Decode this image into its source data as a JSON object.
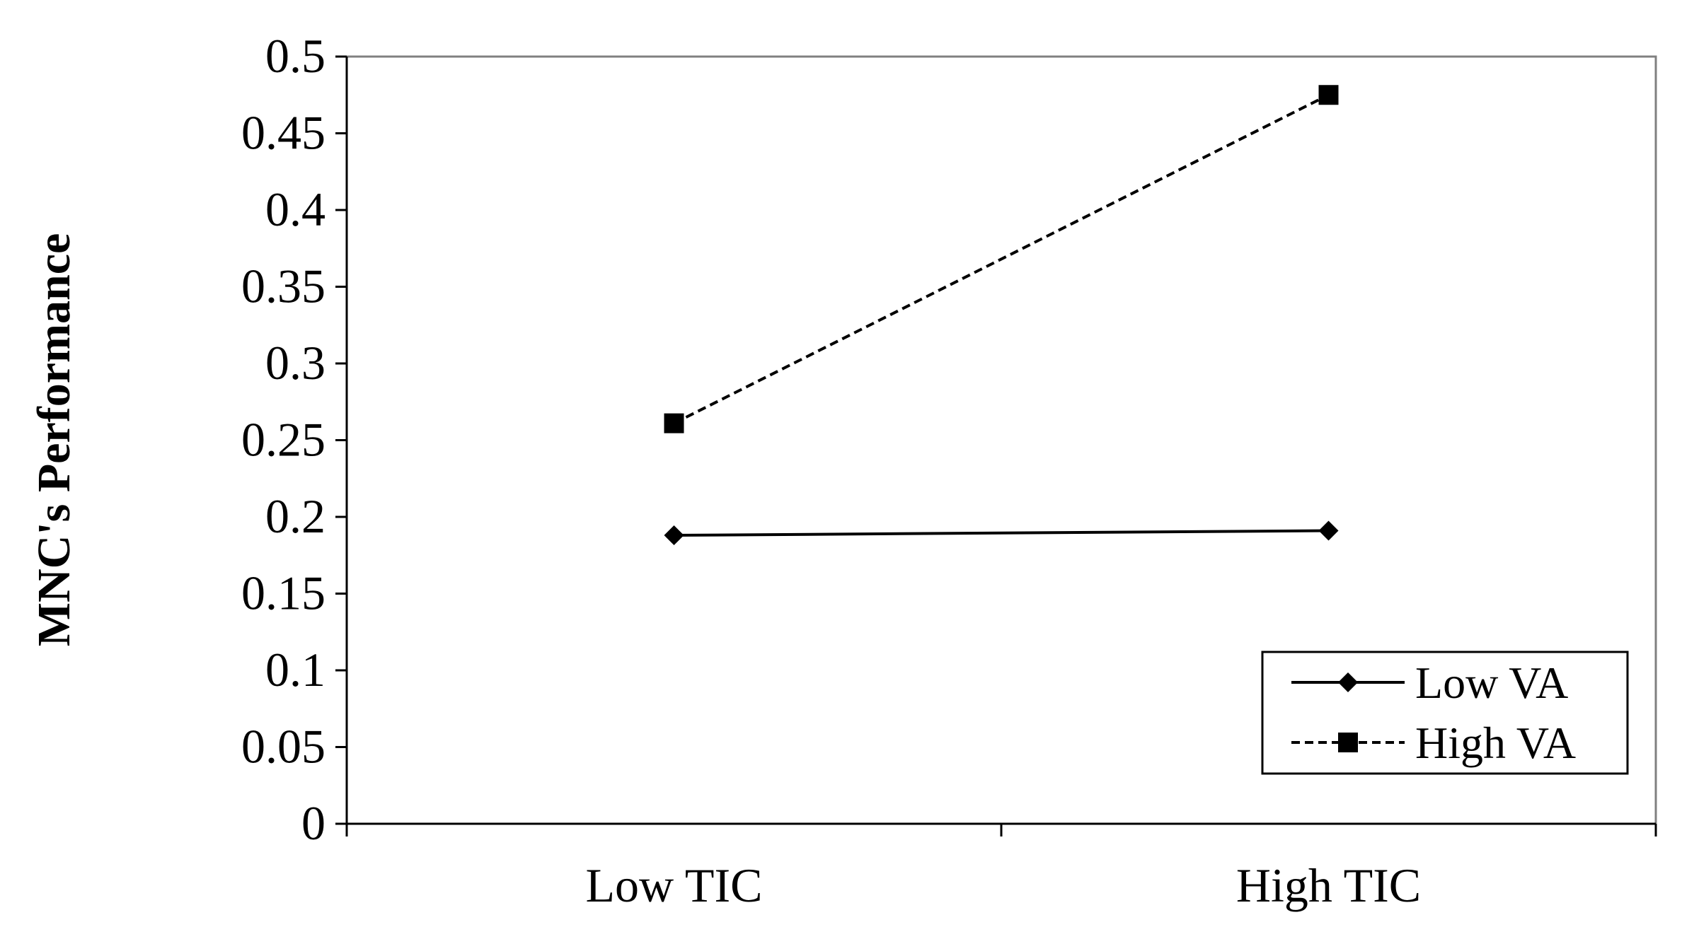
{
  "chart_data": {
    "type": "line",
    "title": "",
    "xlabel": "",
    "ylabel": "MNC's Performance",
    "categories": [
      "Low TIC",
      "High TIC"
    ],
    "ylim": [
      0,
      0.5
    ],
    "yticks": [
      "0",
      "0.05",
      "0.1",
      "0.15",
      "0.2",
      "0.25",
      "0.3",
      "0.35",
      "0.4",
      "0.45",
      "0.5"
    ],
    "grid": false,
    "legend_position": "bottom-right",
    "series": [
      {
        "name": "Low VA",
        "values": [
          0.188,
          0.191
        ],
        "marker": "diamond",
        "line_style": "solid",
        "color": "#000000"
      },
      {
        "name": "High VA",
        "values": [
          0.261,
          0.475
        ],
        "marker": "square",
        "line_style": "dashed",
        "color": "#000000"
      }
    ]
  }
}
